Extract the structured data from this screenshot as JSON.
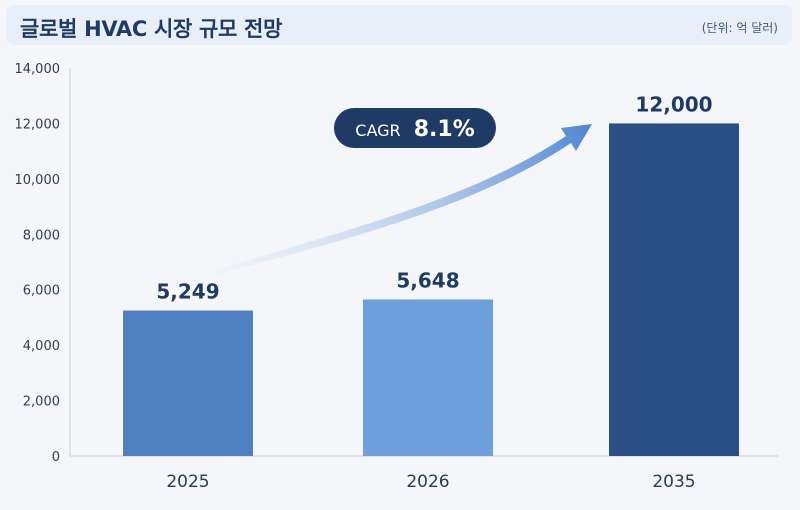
{
  "chart_data": {
    "type": "bar",
    "title": "글로벌 HVAC 시장 규모 전망",
    "unit_note": "(단위: 억 달러)",
    "categories": [
      "2025",
      "2026",
      "2035"
    ],
    "values": [
      5249,
      5648,
      12000
    ],
    "value_labels": [
      "5,249",
      "5,648",
      "12,000"
    ],
    "bar_colors": [
      "#4f80c2",
      "#6e9fdb",
      "#2b4f86"
    ],
    "ylim": [
      0,
      14000
    ],
    "yticks": [
      0,
      2000,
      4000,
      6000,
      8000,
      10000,
      12000,
      14000
    ],
    "ytick_labels": [
      "0",
      "2,000",
      "4,000",
      "6,000",
      "8,000",
      "10,000",
      "12,000",
      "14,000"
    ],
    "grid": false,
    "annotation": {
      "prefix": "CAGR",
      "value": "8.1%"
    },
    "accent_color": "#1f3a64"
  }
}
